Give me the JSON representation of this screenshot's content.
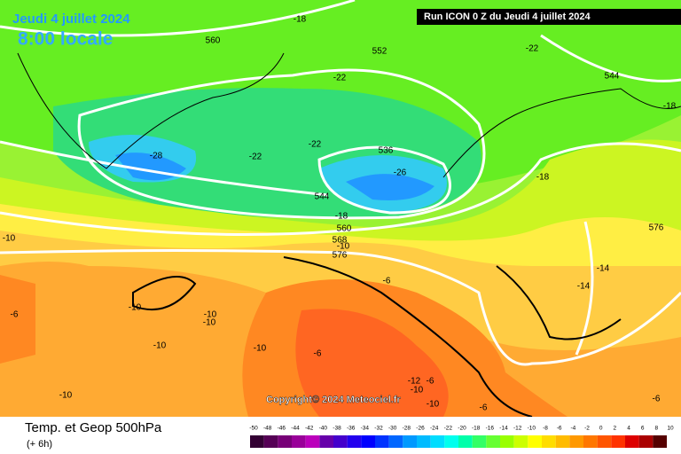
{
  "header": {
    "date": "Jeudi 4 juillet 2024",
    "time": "8:00 locale",
    "run": "Run ICON 0 Z du Jeudi 4 juillet 2024"
  },
  "copyright": "Copyright© 2024 Meteociel.fr",
  "footer": {
    "title": "Temp. et Geop 500hPa",
    "step": "(+ 6h)"
  },
  "map_labels": [
    "-18",
    "560",
    "552",
    "-22",
    "544",
    "-18",
    "-22",
    "-22",
    "536",
    "-28",
    "-22",
    "-26",
    "-18",
    "544",
    "-18",
    "560",
    "576",
    "-10",
    "568",
    "-10",
    "576",
    "-14",
    "-6",
    "-14",
    "-10",
    "-10",
    "-10",
    "-6",
    "-10",
    "-10",
    "-6",
    "-10",
    "-12",
    "-6",
    "-10",
    "-10",
    "-6",
    "-6"
  ],
  "colorbar": {
    "labels": [
      "-50",
      "-48",
      "-46",
      "-44",
      "-42",
      "-40",
      "-38",
      "-36",
      "-34",
      "-32",
      "-30",
      "-28",
      "-26",
      "-24",
      "-22",
      "-20",
      "-18",
      "-16",
      "-14",
      "-12",
      "-10",
      "-8",
      "-6",
      "-4",
      "-2",
      "0",
      "2",
      "4",
      "6",
      "8",
      "10"
    ],
    "colors": [
      "#330033",
      "#550055",
      "#770077",
      "#990099",
      "#bb00bb",
      "#6600aa",
      "#4400cc",
      "#2200ee",
      "#0000ff",
      "#0033ff",
      "#0066ff",
      "#0099ff",
      "#00bbff",
      "#00ddff",
      "#00ffee",
      "#00ffaa",
      "#33ff66",
      "#66ff33",
      "#99ff00",
      "#ccff00",
      "#ffff00",
      "#ffdd00",
      "#ffbb00",
      "#ff9900",
      "#ff7700",
      "#ff5500",
      "#ff3300",
      "#dd0000",
      "#aa0000",
      "#550000"
    ]
  }
}
